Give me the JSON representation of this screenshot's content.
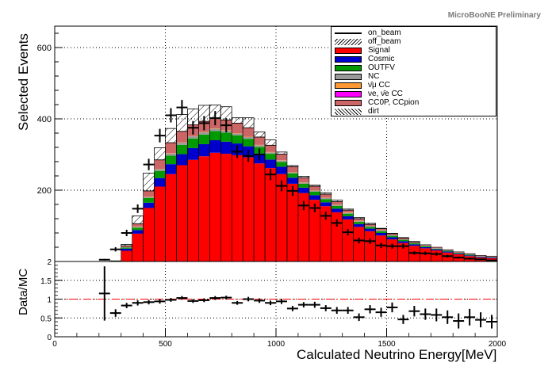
{
  "preliminary_label": "MicroBooNE Preliminary",
  "chart_data": [
    {
      "type": "stacked-histogram",
      "ylabel": "Selected Events",
      "ylim": [
        0,
        660
      ],
      "yticks": [
        200,
        400,
        600
      ],
      "xlim": [
        0,
        2000
      ],
      "bin_edges": [
        0,
        50,
        100,
        150,
        200,
        250,
        300,
        350,
        400,
        450,
        500,
        550,
        600,
        650,
        700,
        750,
        800,
        850,
        900,
        950,
        1000,
        1050,
        1100,
        1150,
        1200,
        1250,
        1300,
        1350,
        1400,
        1450,
        1500,
        1550,
        1600,
        1650,
        1700,
        1750,
        1800,
        1850,
        1900,
        1950,
        2000
      ],
      "stack": [
        {
          "name": "Signal",
          "color": "#ff0000",
          "values": [
            0,
            0,
            0,
            0,
            0,
            0,
            30,
            78,
            150,
            210,
            245,
            270,
            285,
            295,
            305,
            302,
            298,
            292,
            275,
            262,
            245,
            218,
            192,
            173,
            155,
            138,
            118,
            97,
            85,
            73,
            62,
            52,
            44,
            37,
            31,
            25,
            20,
            15,
            11,
            9
          ]
        },
        {
          "name": "Cosmic",
          "color": "#0000cc",
          "values": [
            0,
            0,
            0,
            0,
            0,
            1,
            6,
            10,
            15,
            24,
            28,
            31,
            33,
            34,
            35,
            34,
            33,
            31,
            28,
            24,
            21,
            17,
            15,
            13,
            11,
            10,
            9,
            8,
            7,
            7,
            6,
            5,
            4,
            3,
            3,
            3,
            2,
            2,
            2,
            2
          ]
        },
        {
          "name": "OUTFV",
          "color": "#009900",
          "values": [
            0,
            0,
            0,
            0,
            0,
            1,
            3,
            7,
            13,
            20,
            24,
            26,
            27,
            27,
            26,
            25,
            23,
            21,
            18,
            16,
            13,
            12,
            11,
            10,
            9,
            8,
            7,
            6,
            5,
            5,
            4,
            4,
            3,
            3,
            2,
            2,
            2,
            2,
            1,
            1
          ]
        },
        {
          "name": "NC",
          "color": "#999999",
          "values": [
            0,
            0,
            0,
            0,
            0,
            0,
            1,
            2,
            3,
            5,
            6,
            6,
            6,
            6,
            6,
            6,
            5,
            5,
            5,
            4,
            4,
            3,
            3,
            3,
            3,
            3,
            2,
            2,
            2,
            2,
            2,
            1,
            1,
            1,
            1,
            1,
            1,
            1,
            1,
            1
          ]
        },
        {
          "name": "ν̄μ CC",
          "color": "#ff9933",
          "values": [
            0,
            0,
            0,
            0,
            0,
            0,
            0,
            1,
            1,
            1,
            1,
            1,
            1,
            1,
            1,
            1,
            1,
            1,
            1,
            1,
            1,
            1,
            1,
            1,
            1,
            1,
            1,
            1,
            0,
            0,
            0,
            0,
            0,
            0,
            0,
            0,
            0,
            0,
            0,
            0
          ]
        },
        {
          "name": "νe, ν̄e CC",
          "color": "#ff00ff",
          "values": [
            0,
            0,
            0,
            0,
            0,
            0,
            0,
            0,
            0,
            0,
            0,
            0,
            0,
            0,
            0,
            0,
            0,
            0,
            0,
            0,
            0,
            0,
            0,
            0,
            0,
            0,
            0,
            0,
            0,
            0,
            0,
            0,
            0,
            0,
            0,
            0,
            0,
            0,
            0,
            0
          ]
        },
        {
          "name": "CC0P, CCpion",
          "color": "#cc6666",
          "values": [
            0,
            0,
            0,
            0,
            0,
            0,
            4,
            8,
            16,
            25,
            29,
            31,
            31,
            30,
            29,
            29,
            28,
            25,
            22,
            19,
            17,
            15,
            13,
            11,
            10,
            8,
            7,
            6,
            5,
            5,
            4,
            4,
            3,
            3,
            3,
            2,
            2,
            2,
            2,
            2
          ]
        },
        {
          "name": "dirt",
          "color": "#ffffff",
          "values": [
            0,
            0,
            0,
            0,
            0,
            0,
            0,
            0,
            0,
            0,
            0,
            0,
            0,
            0,
            0,
            0,
            0,
            0,
            0,
            0,
            0,
            0,
            0,
            0,
            0,
            0,
            0,
            0,
            0,
            0,
            0,
            0,
            0,
            0,
            0,
            0,
            0,
            0,
            0,
            0
          ]
        }
      ],
      "off_beam": {
        "name": "off_beam",
        "values": [
          0,
          0,
          0,
          0,
          0,
          0,
          4,
          22,
          50,
          34,
          40,
          47,
          45,
          45,
          37,
          37,
          15,
          28,
          14,
          15,
          6,
          3,
          4,
          3,
          4,
          4,
          3,
          3,
          3,
          1,
          1,
          1,
          1,
          0,
          0,
          0,
          0,
          0,
          0,
          0
        ]
      },
      "on_beam": {
        "name": "on_beam",
        "x": [
          225,
          275,
          325,
          375,
          425,
          475,
          525,
          575,
          625,
          675,
          725,
          775,
          825,
          875,
          925,
          975,
          1025,
          1075,
          1125,
          1175,
          1225,
          1275,
          1325,
          1375,
          1425,
          1475,
          1525,
          1575,
          1625,
          1675,
          1725,
          1775,
          1825,
          1875,
          1925,
          1975
        ],
        "y": [
          5,
          34,
          80,
          148,
          272,
          353,
          410,
          432,
          375,
          388,
          402,
          382,
          308,
          296,
          300,
          244,
          212,
          198,
          157,
          150,
          128,
          108,
          82,
          59,
          57,
          45,
          43,
          43,
          24,
          23,
          21,
          15,
          11,
          8,
          6,
          3
        ],
        "err": [
          2,
          6,
          9,
          12,
          16,
          19,
          20,
          21,
          19,
          20,
          20,
          20,
          18,
          17,
          17,
          16,
          15,
          14,
          13,
          12,
          11,
          10,
          9,
          8,
          8,
          7,
          7,
          7,
          5,
          5,
          5,
          4,
          3,
          3,
          2,
          2
        ]
      }
    },
    {
      "type": "ratio",
      "ylabel": "Data/MC",
      "xlabel": "Calculated Neutrino Energy[MeV]",
      "ylim": [
        0,
        2
      ],
      "yticks": [
        0,
        0.5,
        1,
        1.5,
        2
      ],
      "xticks": [
        0,
        500,
        1000,
        1500,
        2000
      ],
      "reference_line": 1,
      "x": [
        250,
        300,
        350,
        400,
        450,
        500,
        550,
        600,
        650,
        700,
        750,
        800,
        850,
        900,
        950,
        1000,
        1050,
        1100,
        1150,
        1200,
        1250,
        1300,
        1350,
        1400,
        1450,
        1500,
        1550,
        1600,
        1650,
        1700,
        1750,
        1800,
        1850,
        1900,
        1950,
        2000
      ],
      "y": [
        1.15,
        0.63,
        0.83,
        0.9,
        0.92,
        0.94,
        0.98,
        1.03,
        0.95,
        0.97,
        1.03,
        1.04,
        0.9,
        1.0,
        0.96,
        0.9,
        0.94,
        0.75,
        0.85,
        0.85,
        0.76,
        0.7,
        0.7,
        0.52,
        0.73,
        0.65,
        0.78,
        0.46,
        0.68,
        0.6,
        0.58,
        0.52,
        0.42,
        0.52,
        0.45,
        0.4
      ],
      "err": [
        0.72,
        0.1,
        0.07,
        0.07,
        0.06,
        0.06,
        0.05,
        0.05,
        0.05,
        0.05,
        0.05,
        0.05,
        0.05,
        0.06,
        0.06,
        0.06,
        0.07,
        0.07,
        0.07,
        0.08,
        0.08,
        0.09,
        0.09,
        0.1,
        0.11,
        0.12,
        0.13,
        0.12,
        0.14,
        0.15,
        0.17,
        0.18,
        0.2,
        0.22,
        0.2,
        0.18
      ]
    }
  ],
  "legend_entries": [
    {
      "label": "on_beam",
      "kind": "line"
    },
    {
      "label": "off_beam",
      "kind": "hatch"
    },
    {
      "label": "Signal",
      "kind": "fill",
      "color": "#ff0000"
    },
    {
      "label": "Cosmic",
      "kind": "fill",
      "color": "#0000cc"
    },
    {
      "label": "OUTFV",
      "kind": "fill",
      "color": "#009900"
    },
    {
      "label": "NC",
      "kind": "fill",
      "color": "#999999"
    },
    {
      "label": "ν̄μ CC",
      "kind": "fill",
      "color": "#ff9933"
    },
    {
      "label": "νe, ν̄e CC",
      "kind": "fill",
      "color": "#ff00ff"
    },
    {
      "label": "CC0P, CCpion",
      "kind": "fill",
      "color": "#cc6666"
    },
    {
      "label": "dirt",
      "kind": "hatch2"
    }
  ]
}
